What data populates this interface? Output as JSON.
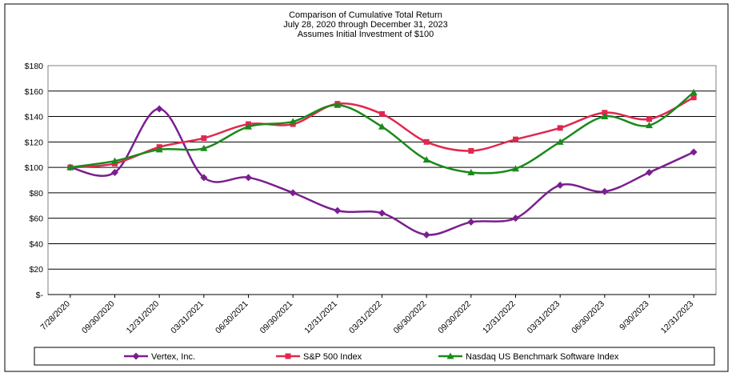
{
  "chart_data": {
    "type": "line",
    "title": [
      "Comparison of Cumulative Total Return",
      "July 28, 2020 through December 31, 2023",
      "Assumes Initial Investment of $100"
    ],
    "xlabel": "",
    "ylabel": "",
    "categories": [
      "7/28/2020",
      "09/30/2020",
      "12/31/2020",
      "03/31/2021",
      "06/30/2021",
      "09/30/2021",
      "12/31/2021",
      "03/31/2022",
      "06/30/2022",
      "09/30/2022",
      "12/31/2022",
      "03/31/2023",
      "06/30/2023",
      "9/30/2023",
      "12/31/2023"
    ],
    "y_ticks": [
      "$-",
      "$20",
      "$40",
      "$60",
      "$80",
      "$100",
      "$120",
      "$140",
      "$160",
      "$180"
    ],
    "ylim": [
      0,
      180
    ],
    "grid": true,
    "legend_placement": "bottom",
    "series": [
      {
        "name": "Vertex, Inc.",
        "color": "#7a1f8f",
        "marker": "diamond",
        "values": [
          100,
          96,
          146,
          92,
          92,
          80,
          66,
          64,
          47,
          57,
          60,
          86,
          81,
          96,
          112
        ]
      },
      {
        "name": "S&P 500 Index",
        "color": "#e0284f",
        "marker": "square",
        "values": [
          100,
          103,
          116,
          123,
          134,
          134,
          150,
          142,
          120,
          113,
          122,
          131,
          143,
          138,
          155
        ]
      },
      {
        "name": "Nasdaq US Benchmark Software Index",
        "color": "#1a8a1a",
        "marker": "triangle",
        "values": [
          100,
          105,
          114,
          115,
          132,
          136,
          149,
          132,
          106,
          96,
          99,
          120,
          140,
          133,
          159
        ]
      }
    ]
  }
}
